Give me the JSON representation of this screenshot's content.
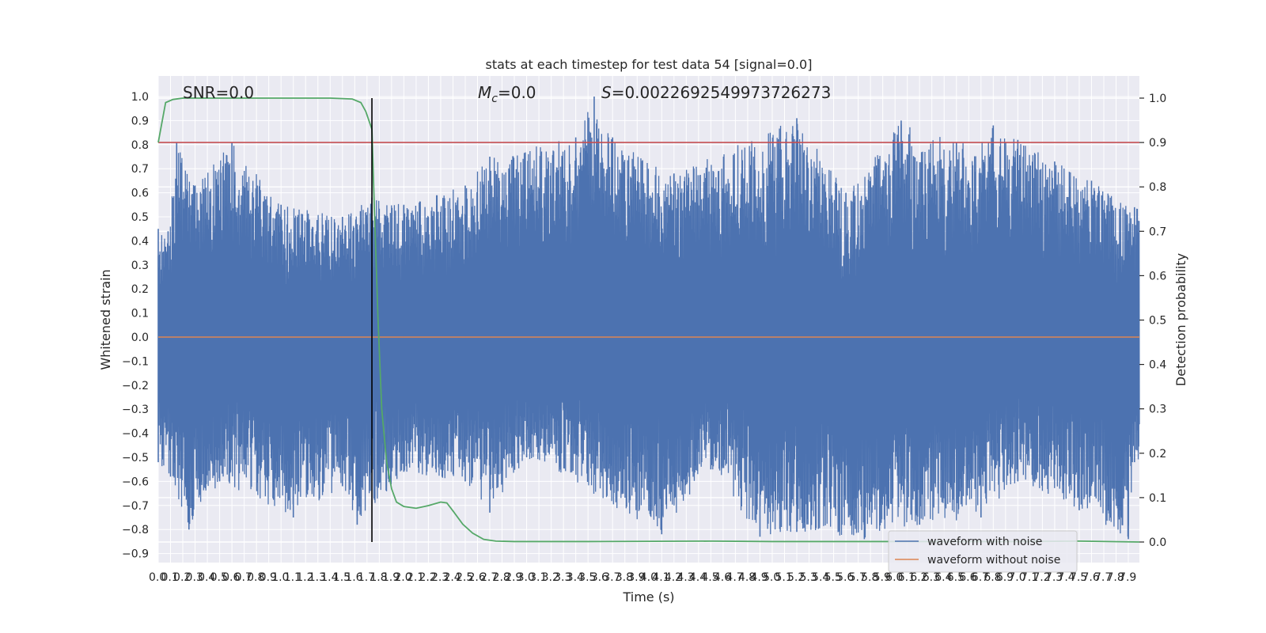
{
  "chart_data": {
    "type": "line",
    "title": "stats at each timestep for test data 54 [signal=0.0]",
    "xlabel": "Time (s)",
    "ylabel_left": "Whitened strain",
    "ylabel_right": "Detection probability",
    "xlim": [
      0.0,
      7.99
    ],
    "ylim_left": [
      -1.0,
      1.09
    ],
    "ylim_right": [
      0.0,
      1.0
    ],
    "grid": true,
    "legend_position": "lower-right",
    "annotations": {
      "snr": "SNR=0.0",
      "mc_symbol": "M",
      "mc_sub": "c",
      "mc_value": "=0.0",
      "s_symbol": "S",
      "s_value": "=0.0022692549973726273"
    },
    "x_ticks": [
      "0.0",
      "0.1",
      "0.2",
      "0.3",
      "0.4",
      "0.5",
      "0.6",
      "0.7",
      "0.8",
      "0.9",
      "1.0",
      "1.1",
      "1.2",
      "1.3",
      "1.4",
      "1.5",
      "1.6",
      "1.7",
      "1.8",
      "1.9",
      "2.0",
      "2.1",
      "2.2",
      "2.3",
      "2.4",
      "2.5",
      "2.6",
      "2.7",
      "2.8",
      "2.9",
      "3.0",
      "3.1",
      "3.2",
      "3.3",
      "3.4",
      "3.5",
      "3.6",
      "3.7",
      "3.8",
      "3.9",
      "4.0",
      "4.1",
      "4.2",
      "4.3",
      "4.4",
      "4.5",
      "4.6",
      "4.7",
      "4.8",
      "4.9",
      "5.0",
      "5.1",
      "5.2",
      "5.3",
      "5.4",
      "5.5",
      "5.6",
      "5.7",
      "5.8",
      "5.9",
      "6.0",
      "6.1",
      "6.2",
      "6.3",
      "6.4",
      "6.5",
      "6.6",
      "6.7",
      "6.8",
      "6.9",
      "7.0",
      "7.1",
      "7.2",
      "7.3",
      "7.4",
      "7.5",
      "7.6",
      "7.7",
      "7.8",
      "7.9"
    ],
    "y_ticks_left": [
      "-0.9",
      "-0.8",
      "-0.7",
      "-0.6",
      "-0.5",
      "-0.4",
      "-0.3",
      "-0.2",
      "-0.1",
      "0.0",
      "0.1",
      "0.2",
      "0.3",
      "0.4",
      "0.5",
      "0.6",
      "0.7",
      "0.8",
      "0.9",
      "1.0"
    ],
    "y_ticks_right": [
      "0.0",
      "0.1",
      "0.2",
      "0.3",
      "0.4",
      "0.5",
      "0.6",
      "0.7",
      "0.8",
      "0.9",
      "1.0"
    ],
    "series": [
      {
        "name": "waveform with noise",
        "color": "#4c72b0",
        "envelope_upper": [
          [
            0.0,
            0.45
          ],
          [
            0.08,
            0.44
          ],
          [
            0.15,
            0.81
          ],
          [
            0.3,
            0.63
          ],
          [
            0.6,
            0.81
          ],
          [
            1.0,
            0.55
          ],
          [
            1.5,
            0.5
          ],
          [
            1.74,
            0.58
          ],
          [
            2.0,
            0.55
          ],
          [
            2.5,
            0.63
          ],
          [
            2.7,
            0.75
          ],
          [
            3.4,
            0.83
          ],
          [
            3.55,
            1.0
          ],
          [
            3.7,
            0.83
          ],
          [
            4.2,
            0.68
          ],
          [
            5.2,
            0.91
          ],
          [
            5.6,
            0.6
          ],
          [
            6.05,
            0.9
          ],
          [
            6.5,
            0.81
          ],
          [
            6.8,
            0.88
          ],
          [
            7.0,
            0.82
          ],
          [
            7.3,
            0.73
          ],
          [
            7.6,
            0.65
          ],
          [
            7.95,
            0.54
          ]
        ],
        "envelope_lower": [
          [
            0.0,
            -0.52
          ],
          [
            0.1,
            -0.58
          ],
          [
            0.25,
            -0.8
          ],
          [
            0.5,
            -0.6
          ],
          [
            1.1,
            -0.75
          ],
          [
            1.5,
            -0.62
          ],
          [
            1.62,
            -0.78
          ],
          [
            2.0,
            -0.56
          ],
          [
            2.5,
            -0.6
          ],
          [
            2.7,
            -0.73
          ],
          [
            3.0,
            -0.5
          ],
          [
            4.1,
            -0.82
          ],
          [
            4.5,
            -0.55
          ],
          [
            4.9,
            -0.83
          ],
          [
            5.2,
            -0.81
          ],
          [
            5.75,
            -0.84
          ],
          [
            6.2,
            -0.78
          ],
          [
            6.7,
            -0.75
          ],
          [
            7.0,
            -0.6
          ],
          [
            7.5,
            -0.72
          ],
          [
            7.9,
            -0.84
          ],
          [
            7.95,
            -0.52
          ]
        ]
      },
      {
        "name": "waveform without noise",
        "color": "#dd8452",
        "x": [
          0.0,
          7.99
        ],
        "y": [
          0.0,
          0.0
        ]
      },
      {
        "name": "",
        "color": "#55a868",
        "axis": "right",
        "x": [
          0.0,
          0.06,
          0.12,
          0.2,
          0.5,
          1.0,
          1.4,
          1.58,
          1.65,
          1.69,
          1.74,
          1.76,
          1.79,
          1.82,
          1.86,
          1.9,
          1.94,
          2.0,
          2.1,
          2.2,
          2.3,
          2.35,
          2.4,
          2.48,
          2.56,
          2.65,
          2.75,
          2.9,
          3.5,
          4.5,
          5.0,
          6.0,
          7.0,
          7.5,
          7.99
        ],
        "y": [
          0.9,
          0.99,
          0.997,
          1.0,
          1.0,
          1.0,
          1.0,
          0.998,
          0.99,
          0.97,
          0.93,
          0.75,
          0.5,
          0.3,
          0.18,
          0.12,
          0.09,
          0.08,
          0.076,
          0.082,
          0.09,
          0.088,
          0.07,
          0.04,
          0.02,
          0.006,
          0.002,
          0.001,
          0.001,
          0.002,
          0.001,
          0.001,
          0.001,
          0.002,
          0.0
        ]
      }
    ],
    "threshold": {
      "color": "#c44e52",
      "axis": "right",
      "value": 0.9
    },
    "marker_line": {
      "color": "#000000",
      "x": 1.74
    }
  }
}
